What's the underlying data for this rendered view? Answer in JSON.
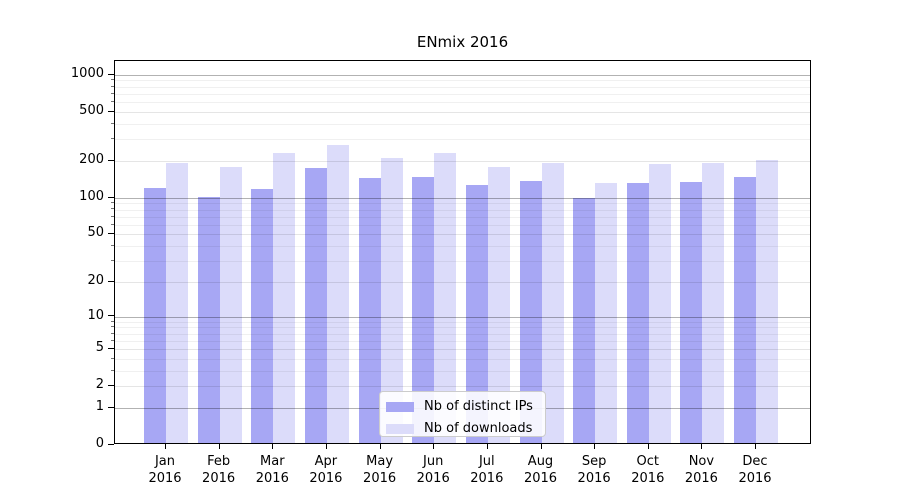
{
  "chart_data": {
    "type": "bar",
    "title": "ENmix 2016",
    "categories": [
      "Jan",
      "Feb",
      "Mar",
      "Apr",
      "May",
      "Jun",
      "Jul",
      "Aug",
      "Sep",
      "Oct",
      "Nov",
      "Dec"
    ],
    "x_year_label": "2016",
    "series": [
      {
        "name": "Nb of distinct IPs",
        "color": "#a7a7f4",
        "values": [
          116,
          97,
          113,
          167,
          139,
          142,
          123,
          131,
          96,
          128,
          129,
          141
        ]
      },
      {
        "name": "Nb of downloads",
        "color": "#dcdcfa",
        "values": [
          186,
          171,
          224,
          258,
          202,
          222,
          170,
          184,
          128,
          183,
          184,
          196
        ]
      }
    ],
    "y_scale": "log1p",
    "y_axis_ticks": [
      0,
      1,
      2,
      5,
      10,
      20,
      50,
      100,
      200,
      500,
      1000
    ],
    "y_major_gridlines": [
      1,
      10,
      100,
      1000
    ],
    "y_minor_gridlines": [
      3,
      4,
      6,
      7,
      8,
      9,
      30,
      40,
      60,
      70,
      80,
      90,
      300,
      400,
      600,
      700,
      800,
      900
    ],
    "ylim": [
      0,
      1300
    ],
    "grid": true,
    "legend_position": "lower center",
    "axis_color": "#000000"
  }
}
